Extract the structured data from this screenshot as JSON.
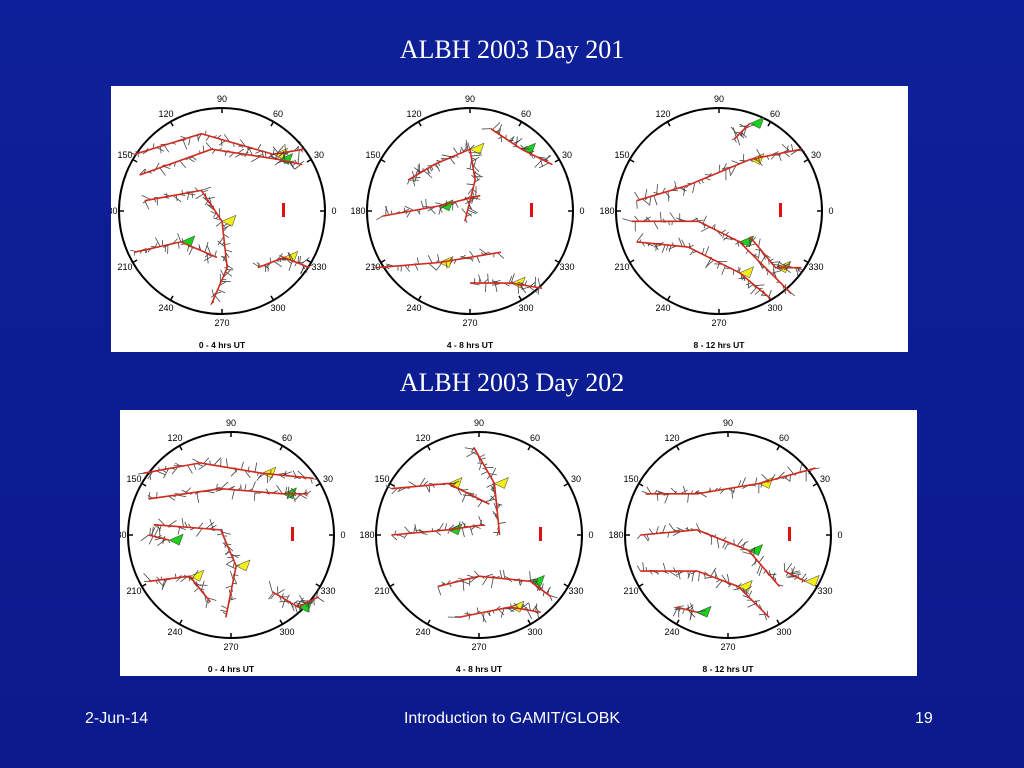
{
  "slide": {
    "title_day201": "ALBH 2003 Day 201",
    "title_day202": "ALBH 2003 Day 202"
  },
  "panels": [
    {
      "id": "day201",
      "plots": [
        {
          "caption": "0 - 4 hrs UT"
        },
        {
          "caption": "4 - 8 hrs UT"
        },
        {
          "caption": "8 - 12 hrs UT"
        }
      ]
    },
    {
      "id": "day202",
      "plots": [
        {
          "caption": "0 - 4 hrs UT"
        },
        {
          "caption": "4 - 8 hrs UT"
        },
        {
          "caption": "8 - 12 hrs UT"
        }
      ]
    }
  ],
  "azimuth_labels": [
    "90",
    "60",
    "30",
    "0",
    "330",
    "300",
    "270",
    "240",
    "210",
    "180",
    "150",
    "120"
  ],
  "colors": {
    "background": "#0d1d94",
    "trace": "#d22a1e",
    "residual": "#444444",
    "fill_yellow": "#f2ee1a",
    "fill_green": "#19d219",
    "scale_bar": "#e01010"
  },
  "footer": {
    "date": "2-Jun-14",
    "title": "Introduction to GAMIT/GLOBK",
    "page": "19"
  }
}
